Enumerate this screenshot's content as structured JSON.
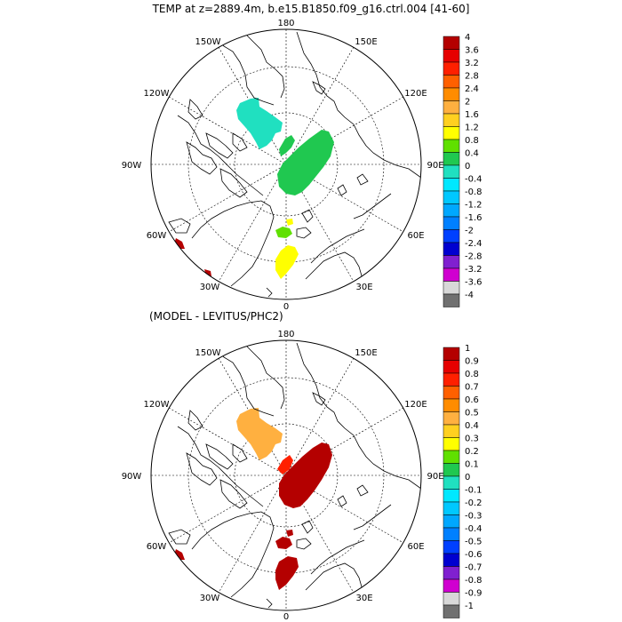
{
  "title_top": "TEMP at z=2889.4m, b.e15.B1850.f09_g16.ctrl.004 [41-60]",
  "title_bottom": "(MODEL - LEVITUS/PHC2)",
  "longitude_labels": {
    "top": "180",
    "bottom": "0",
    "left": "90W",
    "right": "90E",
    "w150": "150W",
    "e150": "150E",
    "w120": "120W",
    "e120": "120E",
    "w60": "60W",
    "e60": "60E",
    "w30": "30W",
    "e30": "30E"
  },
  "colorbar_top": {
    "labels": [
      "4",
      "3.6",
      "3.2",
      "2.8",
      "2.4",
      "2",
      "1.6",
      "1.2",
      "0.8",
      "0.4",
      "0",
      "-0.4",
      "-0.8",
      "-1.2",
      "-1.6",
      "-2",
      "-2.4",
      "-2.8",
      "-3.2",
      "-3.6",
      "-4"
    ],
    "colors": [
      "#b40000",
      "#e60000",
      "#ff2000",
      "#ff6000",
      "#ff8c00",
      "#ffb040",
      "#ffd020",
      "#ffff00",
      "#60e000",
      "#20c850",
      "#20e0c0",
      "#00e8ff",
      "#00c8ff",
      "#00a8ff",
      "#0080ff",
      "#0040ff",
      "#0000d0",
      "#8020d0",
      "#d000d0",
      "#d8d8d8",
      "#707070"
    ]
  },
  "colorbar_bottom": {
    "labels": [
      "1",
      "0.9",
      "0.8",
      "0.7",
      "0.6",
      "0.5",
      "0.4",
      "0.3",
      "0.2",
      "0.1",
      "0",
      "-0.1",
      "-0.2",
      "-0.3",
      "-0.4",
      "-0.5",
      "-0.6",
      "-0.7",
      "-0.8",
      "-0.9",
      "-1"
    ],
    "colors": [
      "#b40000",
      "#e60000",
      "#ff2000",
      "#ff6000",
      "#ff8c00",
      "#ffb040",
      "#ffd020",
      "#ffff00",
      "#60e000",
      "#20c850",
      "#20e0c0",
      "#00e8ff",
      "#00c8ff",
      "#00a8ff",
      "#0080ff",
      "#0040ff",
      "#0000d0",
      "#8020d0",
      "#d000d0",
      "#d8d8d8",
      "#707070"
    ]
  },
  "fields": {
    "top": [
      {
        "region": "canada-basin-anomaly",
        "color": "#20e0c0"
      },
      {
        "region": "makarov-streak-anomaly",
        "color": "#20c850"
      },
      {
        "region": "eurasian-basin-anomaly",
        "color": "#20c850"
      },
      {
        "region": "fram-strait-anomaly",
        "color": "#60e000"
      },
      {
        "region": "greenland-sea-anomaly",
        "color": "#ffff00"
      },
      {
        "region": "labrador-spot-1",
        "color": "#b40000"
      },
      {
        "region": "labrador-spot-2",
        "color": "#b40000"
      }
    ],
    "bottom": [
      {
        "region": "canada-basin-anomaly",
        "color": "#ffb040"
      },
      {
        "region": "makarov-streak-anomaly",
        "color": "#ff2000"
      },
      {
        "region": "eurasian-basin-anomaly",
        "color": "#b40000"
      },
      {
        "region": "fram-strait-anomaly",
        "color": "#b40000"
      },
      {
        "region": "greenland-sea-anomaly",
        "color": "#b40000"
      },
      {
        "region": "labrador-spot-1",
        "color": "#b40000"
      }
    ]
  }
}
